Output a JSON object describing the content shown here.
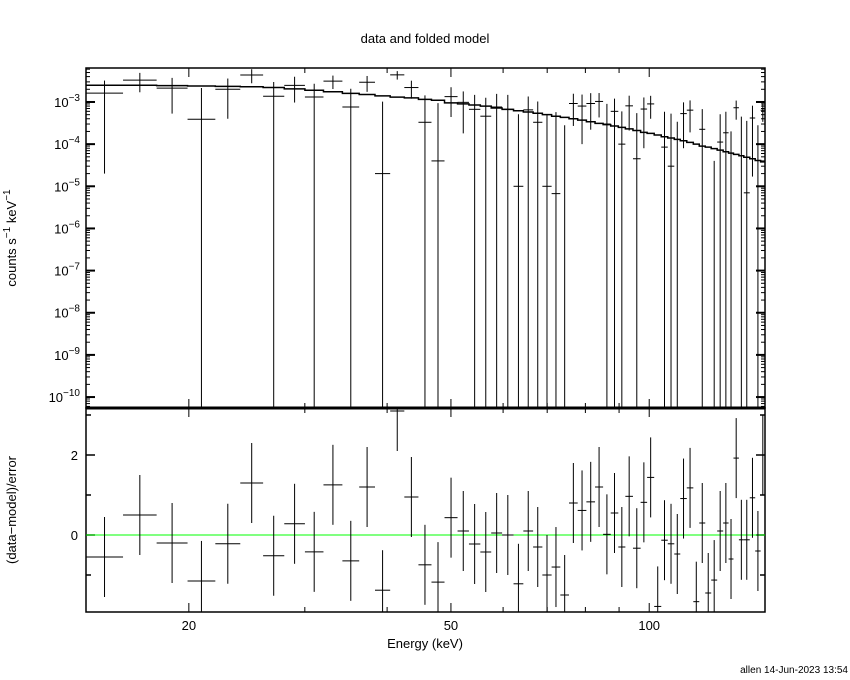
{
  "chart_data": [
    {
      "type": "scatter",
      "title": "data and folded model",
      "xlabel": "Energy (keV)",
      "ylabel": "counts s^-1 keV^-1",
      "ylabel_parts": {
        "a": "counts s",
        "b": "−1",
        "c": " keV",
        "d": "−1"
      },
      "xscale": "log",
      "yscale": "log",
      "xlim": [
        13.96,
        149.9
      ],
      "ylim": [
        5.5e-11,
        0.0064
      ],
      "ytick_exponents": [
        "−3",
        "−4",
        "−5",
        "−6",
        "−7",
        "−8",
        "−9",
        "−10"
      ],
      "ytick_values": [
        0.001,
        0.0001,
        1e-05,
        1e-06,
        1e-07,
        1e-08,
        1e-09,
        1e-10
      ],
      "ytick_base": "10",
      "grid": false,
      "bins": {
        "edges": [
          13.96,
          15.89,
          17.87,
          19.91,
          21.94,
          23.94,
          25.93,
          27.92,
          30.01,
          32.02,
          34.21,
          36.28,
          38.34,
          40.43,
          42.48,
          44.63,
          46.71,
          48.89,
          51.17,
          53.25,
          55.41,
          57.56,
          59.79,
          62.23,
          64.4,
          66.64,
          68.83,
          71.09,
          73.29,
          75.55,
          77.88,
          80.28,
          82.75,
          85.11,
          87.41,
          89.76,
          92.0,
          94.48,
          97.04,
          99.27,
          101.76,
          104.3,
          106.7,
          109.16,
          111.47,
          114.04,
          116.67,
          119.12,
          121.64,
          124.2,
          126.82,
          129.5,
          131.98,
          134.25,
          136.83,
          139.19,
          142.12,
          144.85,
          147.63,
          149.9
        ],
        "rate": [
          0.00162,
          0.0033,
          0.00213,
          0.00039,
          0.002,
          0.00438,
          0.00137,
          0.00247,
          0.00131,
          0.00313,
          0.00076,
          0.00294,
          2e-05,
          0.0044,
          0.0022,
          0.00033,
          4e-05,
          0.00134,
          0.00098,
          0.00067,
          0.00046,
          0.00076,
          0.00067,
          1e-05,
          0.00065,
          0.00033,
          1e-05,
          6.7e-06,
          -2e-05,
          0.00092,
          0.0008,
          0.00092,
          0.00103,
          0.0003,
          0.0006,
          0.0001,
          0.00081,
          4.5e-05,
          0.00068,
          0.0009,
          -0.00046,
          8.5e-05,
          3e-05,
          -6e-05,
          0.00053,
          0.00064,
          -0.0004,
          0.000225,
          -0.00035,
          -0.00026,
          0.000112,
          0.000186,
          -0.000149,
          0.00073,
          -1e-06,
          7e-06,
          0.000417,
          -0.000119,
          0.000638
        ],
        "error": [
          0.0016,
          0.0016,
          0.0016,
          0.00175,
          0.0016,
          0.0016,
          0.0016,
          0.0015,
          0.0014,
          0.0011,
          0.0013,
          0.0012,
          0.001,
          0.001,
          0.001,
          0.0011,
          0.0009,
          0.0009,
          0.0008,
          0.0008,
          0.0008,
          0.0008,
          0.0008,
          0.0005,
          0.0007,
          0.0007,
          0.00049,
          0.000566,
          0.0003,
          0.00065,
          0.0007,
          0.0007,
          0.0006,
          0.0006,
          0.0006,
          0.0005,
          0.0006,
          0.0005,
          0.0006,
          0.0005,
          0.00035,
          0.0005,
          0.0005,
          0.0004,
          0.00045,
          0.00045,
          0.0003,
          0.00045,
          0.0003,
          0.0003,
          0.0004,
          0.0004,
          0.00035,
          0.00035,
          0.00045,
          0.00035,
          0.0004,
          0.0004,
          0.0003
        ],
        "model": [
          0.0025,
          0.0025,
          0.00245,
          0.0024,
          0.00235,
          0.0023,
          0.0022,
          0.00205,
          0.0019,
          0.00175,
          0.0016,
          0.0015,
          0.0014,
          0.0013,
          0.00125,
          0.00115,
          0.0011,
          0.00095,
          0.0009,
          0.00085,
          0.0008,
          0.00072,
          0.00067,
          0.00062,
          0.00058,
          0.00054,
          0.0005,
          0.00046,
          0.00043,
          0.0004,
          0.00037,
          0.00034,
          0.00031,
          0.00029,
          0.00027,
          0.00025,
          0.00023,
          0.00021,
          0.00019,
          0.00018,
          0.000165,
          0.00015,
          0.00014,
          0.00013,
          0.00012,
          0.00011,
          0.0001,
          9e-05,
          8.5e-05,
          7.8e-05,
          7.2e-05,
          6.6e-05,
          6.1e-05,
          5.7e-05,
          5.3e-05,
          4.9e-05,
          4.5e-05,
          4.1e-05,
          3.8e-05
        ]
      }
    },
    {
      "type": "scatter",
      "ylabel": "(data−model)/error",
      "xlabel": "Energy (keV)",
      "xscale": "log",
      "xlim": [
        13.96,
        149.9
      ],
      "ylim": [
        -1.925,
        3.175
      ],
      "yticks": [
        {
          "value": 0,
          "label": "0"
        },
        {
          "value": 2,
          "label": "2"
        }
      ],
      "xticks": [
        {
          "value": 20,
          "label": "20"
        },
        {
          "value": 50,
          "label": "50"
        },
        {
          "value": 100,
          "label": "100"
        }
      ],
      "zero_line_color": "#00ff00",
      "residual_definition": "(rate-model)/error"
    }
  ],
  "footer": "allen 14-Jun-2023 13:54",
  "colors": {
    "data": "#000000",
    "model": "#000000",
    "zero_line": "#00ff00"
  }
}
